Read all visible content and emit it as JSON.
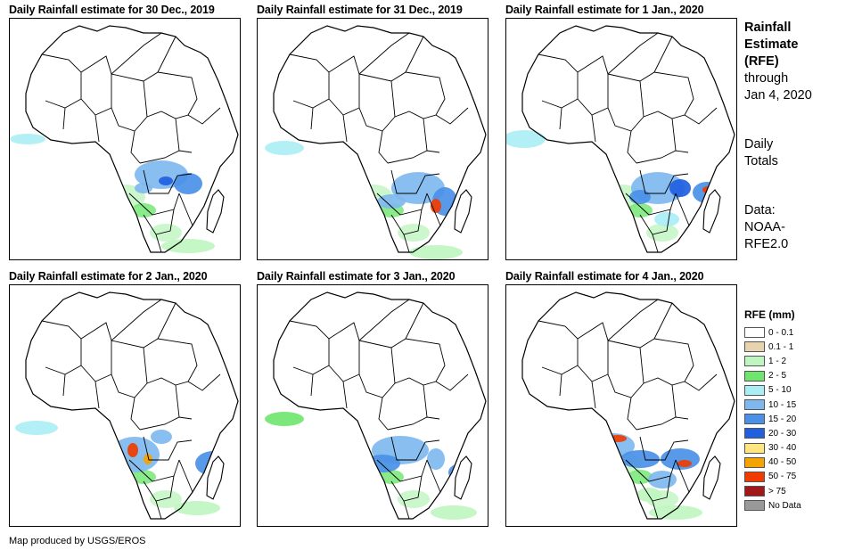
{
  "panels": [
    {
      "title": "Daily Rainfall estimate for 30 Dec., 2019"
    },
    {
      "title": "Daily Rainfall estimate for 31 Dec., 2019"
    },
    {
      "title": "Daily Rainfall estimate for 1 Jan., 2020"
    },
    {
      "title": "Daily Rainfall estimate for 2 Jan., 2020"
    },
    {
      "title": "Daily Rainfall estimate for 3 Jan., 2020"
    },
    {
      "title": "Daily Rainfall estimate for 4 Jan., 2020"
    }
  ],
  "sidebar": {
    "title_lines": [
      "Rainfall",
      "Estimate",
      "(RFE)"
    ],
    "through_lines": [
      "through",
      "Jan 4, 2020"
    ],
    "daily_lines": [
      "Daily",
      "Totals"
    ],
    "source_lines": [
      "Data:",
      "NOAA-",
      "RFE2.0"
    ]
  },
  "legend": {
    "title": "RFE (mm)",
    "items": [
      {
        "label": "0 - 0.1",
        "color": "#ffffff"
      },
      {
        "label": "0.1 - 1",
        "color": "#e8d3b0"
      },
      {
        "label": "1 - 2",
        "color": "#bff5bf"
      },
      {
        "label": "2 - 5",
        "color": "#6ee66e"
      },
      {
        "label": "5 - 10",
        "color": "#aaeef5"
      },
      {
        "label": "10 - 15",
        "color": "#7fb8ef"
      },
      {
        "label": "15 - 20",
        "color": "#4a90e8"
      },
      {
        "label": "20 - 30",
        "color": "#1f5fe0"
      },
      {
        "label": "30 - 40",
        "color": "#ffe680"
      },
      {
        "label": "40 - 50",
        "color": "#f5a300"
      },
      {
        "label": "50 - 75",
        "color": "#f03c00"
      },
      {
        "label": "> 75",
        "color": "#a01818"
      },
      {
        "label": "No Data",
        "color": "#999999"
      }
    ]
  },
  "credit": "Map produced by USGS/EROS"
}
